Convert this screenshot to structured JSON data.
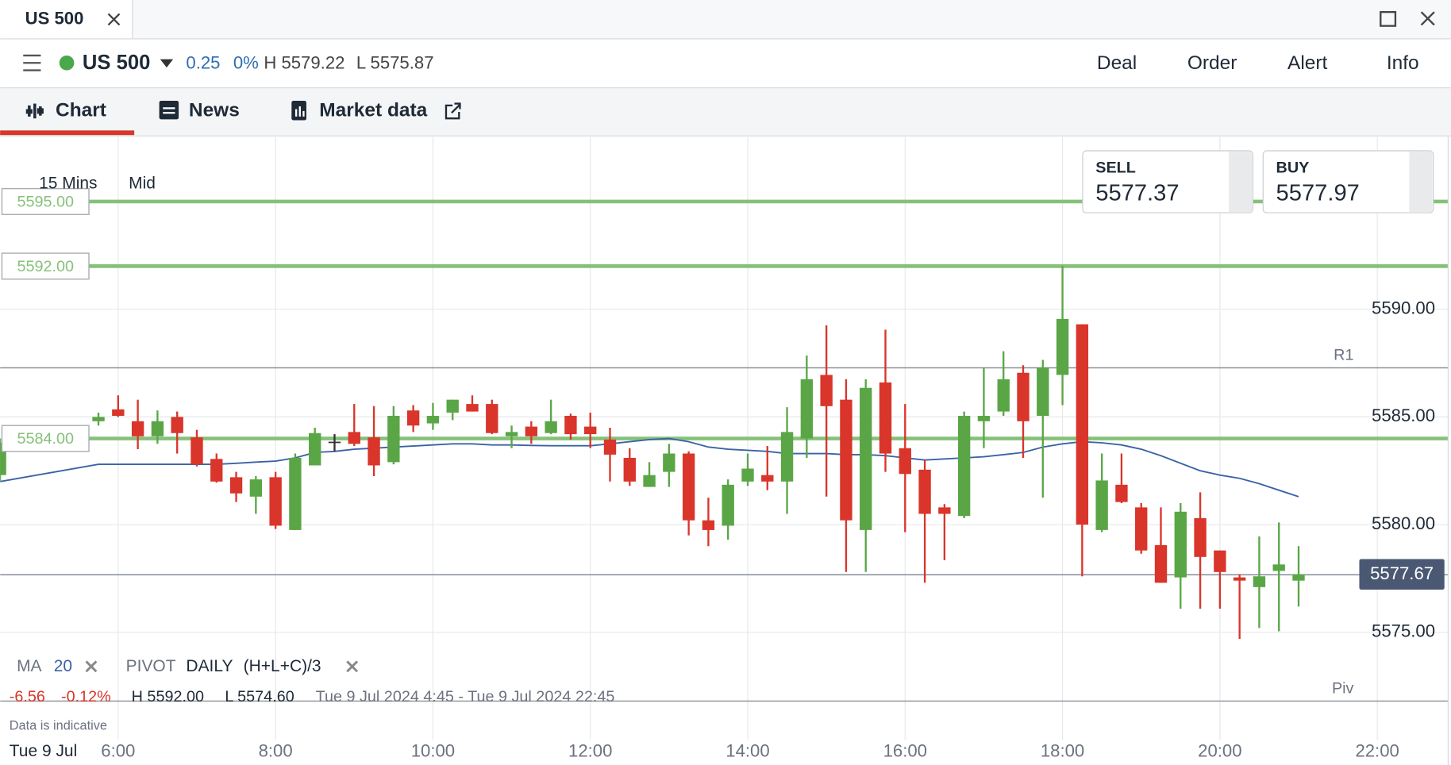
{
  "window": {
    "title": "US 500"
  },
  "instrument": {
    "name": "US 500",
    "change": "0.25",
    "change_pct": "0%",
    "high": "H 5579.22",
    "low": "L 5575.87"
  },
  "actions": [
    "Deal",
    "Order",
    "Alert",
    "Info"
  ],
  "tabs": [
    "Chart",
    "News",
    "Market data"
  ],
  "chart_data": {
    "type": "candlestick",
    "interval": "15 Mins",
    "price_type": "Mid",
    "x": [
      4.5,
      5.75,
      6.0,
      6.25,
      6.5,
      6.75,
      7.0,
      7.25,
      7.5,
      7.75,
      8.0,
      8.25,
      8.5,
      8.75,
      9.0,
      9.25,
      9.5,
      9.75,
      10.0,
      10.25,
      10.5,
      10.75,
      11.0,
      11.25,
      11.5,
      11.75,
      12.0,
      12.25,
      12.5,
      12.75,
      13.0,
      13.25,
      13.5,
      13.75,
      14.0,
      14.25,
      14.5,
      14.75,
      15.0,
      15.25,
      15.5,
      15.75,
      16.0,
      16.25,
      16.5,
      16.75,
      17.0,
      17.25,
      17.5,
      17.75,
      18.0,
      18.25,
      18.5,
      18.75,
      19.0,
      19.25,
      19.5,
      19.75,
      20.0,
      20.25,
      20.5,
      20.75,
      21.0
    ],
    "open": [
      5582.3,
      5584.8,
      5585.35,
      5584.8,
      5584.1,
      5585.0,
      5584.05,
      5583.05,
      5582.2,
      5581.3,
      5582.2,
      5579.75,
      5582.75,
      5583.85,
      5584.3,
      5584.05,
      5582.9,
      5585.3,
      5584.7,
      5585.2,
      5585.6,
      5585.6,
      5584.1,
      5584.55,
      5584.25,
      5585.05,
      5584.55,
      5583.95,
      5583.1,
      5581.75,
      5582.45,
      5583.3,
      5580.2,
      5579.95,
      5582.0,
      5582.3,
      5582.0,
      5584.0,
      5586.95,
      5585.8,
      5579.75,
      5586.6,
      5583.55,
      5582.55,
      5580.8,
      5580.4,
      5584.8,
      5585.25,
      5587.05,
      5585.05,
      5586.95,
      5589.3,
      5579.75,
      5581.85,
      5580.8,
      5579.05,
      5577.55,
      5580.3,
      5578.8,
      5577.55,
      5577.1,
      5577.85,
      5577.4
    ],
    "high": [
      5584.0,
      5585.2,
      5586.0,
      5585.8,
      5585.3,
      5585.25,
      5584.4,
      5583.3,
      5582.45,
      5582.25,
      5582.45,
      5583.3,
      5584.5,
      5584.2,
      5585.6,
      5585.5,
      5585.5,
      5585.55,
      5585.65,
      5585.8,
      5586.0,
      5585.8,
      5584.6,
      5584.8,
      5585.8,
      5585.15,
      5585.2,
      5584.5,
      5583.55,
      5582.9,
      5583.75,
      5583.4,
      5581.25,
      5582.1,
      5583.3,
      5583.65,
      5585.45,
      5587.85,
      5589.25,
      5586.75,
      5586.75,
      5589.05,
      5585.6,
      5583.0,
      5580.95,
      5585.25,
      5587.3,
      5588.05,
      5587.4,
      5587.65,
      5592.0,
      5589.3,
      5583.3,
      5583.3,
      5581.0,
      5580.8,
      5581.0,
      5581.5,
      5578.8,
      5577.7,
      5579.45,
      5580.1,
      5579.0
    ],
    "low": [
      5582.0,
      5584.6,
      5585.0,
      5583.5,
      5583.75,
      5583.3,
      5582.7,
      5581.95,
      5581.05,
      5580.5,
      5579.8,
      5579.75,
      5582.75,
      5583.4,
      5583.65,
      5582.25,
      5582.8,
      5584.3,
      5584.4,
      5584.85,
      5585.25,
      5584.2,
      5583.55,
      5583.75,
      5584.2,
      5583.95,
      5583.55,
      5582.0,
      5581.8,
      5581.75,
      5581.75,
      5579.5,
      5579.0,
      5579.3,
      5581.8,
      5581.6,
      5580.5,
      5583.1,
      5581.3,
      5577.8,
      5577.8,
      5582.45,
      5579.65,
      5577.3,
      5578.35,
      5580.3,
      5583.55,
      5585.05,
      5583.1,
      5581.25,
      5585.55,
      5577.6,
      5579.65,
      5581.0,
      5578.65,
      5577.3,
      5576.1,
      5576.1,
      5576.1,
      5574.7,
      5575.2,
      5575.05,
      5576.2
    ],
    "close": [
      5583.8,
      5585.0,
      5585.05,
      5584.1,
      5584.8,
      5584.25,
      5582.8,
      5582.0,
      5581.45,
      5582.1,
      5579.95,
      5583.1,
      5584.25,
      5583.85,
      5583.75,
      5582.75,
      5585.05,
      5584.6,
      5585.05,
      5585.8,
      5585.25,
      5584.25,
      5584.3,
      5584.1,
      5584.8,
      5584.2,
      5584.2,
      5583.25,
      5582.0,
      5582.3,
      5583.3,
      5580.2,
      5579.75,
      5581.85,
      5582.6,
      5582.0,
      5584.3,
      5586.75,
      5585.5,
      5580.2,
      5586.35,
      5583.3,
      5582.35,
      5580.5,
      5580.5,
      5585.05,
      5585.05,
      5586.75,
      5584.8,
      5587.3,
      5589.55,
      5580.0,
      5582.05,
      5581.05,
      5578.8,
      5577.3,
      5580.6,
      5578.5,
      5577.8,
      5577.4,
      5577.6,
      5578.15,
      5577.7
    ],
    "up_color": "#5aa646",
    "down_color": "#d9352a",
    "flat_color": "#333333",
    "xlim": [
      4.5,
      22.9
    ],
    "xticks": [
      {
        "value": 6,
        "label": "6:00"
      },
      {
        "value": 8,
        "label": "8:00"
      },
      {
        "value": 10,
        "label": "10:00"
      },
      {
        "value": 12,
        "label": "12:00"
      },
      {
        "value": 14,
        "label": "14:00"
      },
      {
        "value": 16,
        "label": "16:00"
      },
      {
        "value": 18,
        "label": "18:00"
      },
      {
        "value": 20,
        "label": "20:00"
      },
      {
        "value": 22,
        "label": "22:00"
      }
    ],
    "x_date_label": "Tue 9 Jul",
    "ylim": [
      5570,
      5598
    ],
    "yticks": [
      {
        "value": 5575,
        "label": "5575.00"
      },
      {
        "value": 5580,
        "label": "5580.00"
      },
      {
        "value": 5585,
        "label": "5585.00"
      },
      {
        "value": 5590,
        "label": "5590.00"
      }
    ],
    "grid": true,
    "ma": {
      "name": "MA",
      "period": 20,
      "color": "#3a63a5",
      "values": [
        5582.0,
        5582.8,
        5582.8,
        5582.8,
        5582.8,
        5582.8,
        5582.8,
        5582.8,
        5582.85,
        5582.9,
        5582.95,
        5583.1,
        5583.35,
        5583.4,
        5583.5,
        5583.55,
        5583.6,
        5583.65,
        5583.7,
        5583.75,
        5583.75,
        5583.7,
        5583.7,
        5583.68,
        5583.66,
        5583.66,
        5583.66,
        5583.75,
        5583.85,
        5583.95,
        5584.0,
        5583.85,
        5583.6,
        5583.5,
        5583.45,
        5583.4,
        5583.3,
        5583.3,
        5583.3,
        5583.25,
        5583.25,
        5583.2,
        5583.1,
        5583.0,
        5583.05,
        5583.1,
        5583.15,
        5583.25,
        5583.35,
        5583.6,
        5583.75,
        5583.85,
        5583.8,
        5583.7,
        5583.5,
        5583.2,
        5582.85,
        5582.5,
        5582.3,
        5582.15,
        5581.9,
        5581.6,
        5581.3
      ]
    },
    "alert_color": "#86c17a",
    "alert_lines": [
      {
        "value": 5595,
        "label": "5595.00"
      },
      {
        "value": 5592,
        "label": "5592.00"
      },
      {
        "value": 5584,
        "label": "5584.00"
      }
    ],
    "pivot_indicator": {
      "name": "PIVOT",
      "period": "DAILY",
      "formula": "(H+L+C)/3"
    },
    "pivots": [
      {
        "name": "R1",
        "value": 5587.28
      },
      {
        "name": "Piv",
        "value": 5571.81
      }
    ],
    "current_price": {
      "value": 5577.67,
      "label": "5577.67"
    },
    "sell": {
      "label": "SELL",
      "price": "5577.37"
    },
    "buy": {
      "label": "BUY",
      "price": "5577.97"
    },
    "summary": {
      "change": "-6.56",
      "change_pct": "-0.12%",
      "high": "H 5592.00",
      "low": "L 5574.60",
      "range": "Tue 9 Jul 2024 4:45 - Tue 9 Jul 2024 22:45"
    },
    "note": "Data is indicative"
  }
}
